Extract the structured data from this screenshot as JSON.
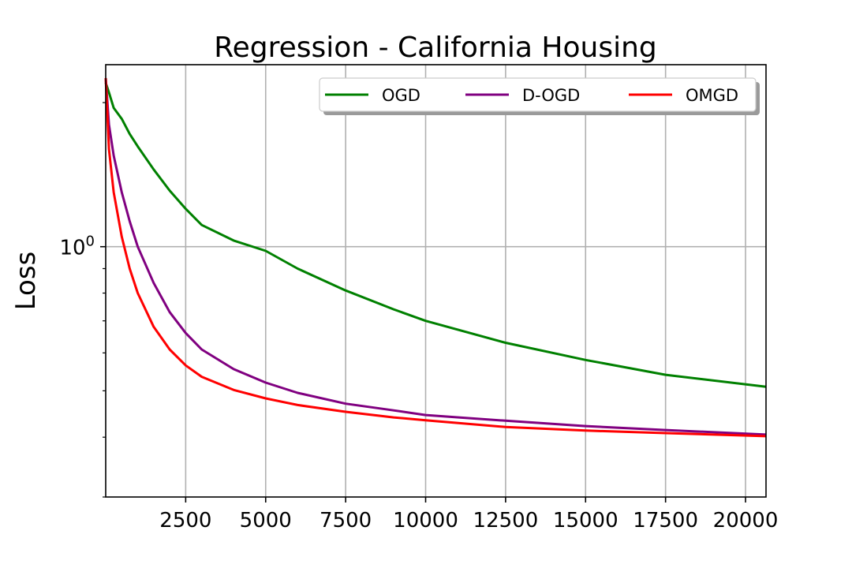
{
  "chart_data": {
    "type": "line",
    "title": "Regression - California Housing",
    "xlabel": "",
    "ylabel": "Loss",
    "yscale": "log",
    "xlim": [
      0,
      20640
    ],
    "ylim": [
      0.3,
      2.4
    ],
    "x_ticks": [
      2500,
      5000,
      7500,
      10000,
      12500,
      15000,
      17500,
      20000
    ],
    "x_tick_labels": [
      "2500",
      "5000",
      "7500",
      "10000",
      "12500",
      "15000",
      "17500",
      "20000"
    ],
    "y_ticks": [
      1.0
    ],
    "y_tick_labels": [
      {
        "base": "10",
        "exp": "0"
      }
    ],
    "grid": true,
    "legend_position": "top-right",
    "x": [
      0,
      100,
      250,
      500,
      750,
      1000,
      1500,
      2000,
      2500,
      3000,
      4000,
      5000,
      6000,
      7500,
      9000,
      10000,
      12500,
      15000,
      17500,
      20640
    ],
    "series": [
      {
        "name": "OGD",
        "color": "#008000",
        "values": [
          2.2,
          2.1,
          1.95,
          1.85,
          1.72,
          1.62,
          1.45,
          1.31,
          1.2,
          1.11,
          1.03,
          0.98,
          0.9,
          0.81,
          0.74,
          0.7,
          0.63,
          0.58,
          0.54,
          0.51
        ]
      },
      {
        "name": "D-OGD",
        "color": "#800080",
        "values": [
          2.25,
          1.8,
          1.55,
          1.3,
          1.13,
          1.0,
          0.84,
          0.73,
          0.66,
          0.61,
          0.555,
          0.52,
          0.495,
          0.47,
          0.455,
          0.445,
          0.433,
          0.422,
          0.414,
          0.405
        ]
      },
      {
        "name": "OMGD",
        "color": "#ff0000",
        "values": [
          2.25,
          1.6,
          1.3,
          1.05,
          0.9,
          0.8,
          0.68,
          0.61,
          0.565,
          0.535,
          0.502,
          0.482,
          0.467,
          0.452,
          0.44,
          0.434,
          0.42,
          0.413,
          0.408,
          0.402
        ]
      }
    ]
  }
}
